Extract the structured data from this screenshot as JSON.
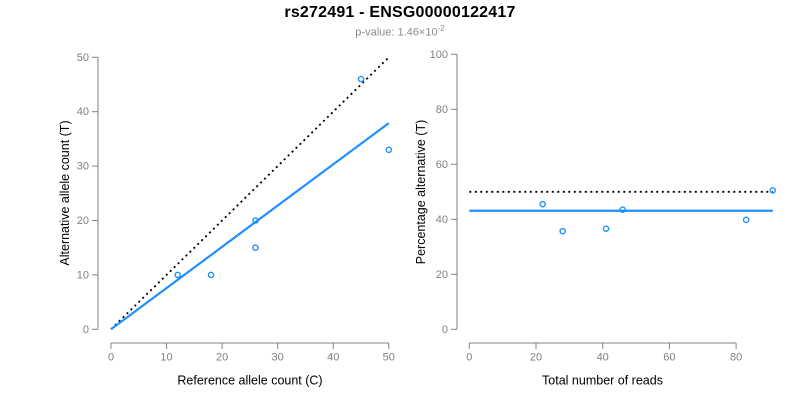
{
  "header": {
    "title": "rs272491 - ENSG00000122417",
    "subtitle_prefix": "p-value: 1.46×10",
    "subtitle_exponent": "-2"
  },
  "colors": {
    "accent_blue": "#1E90FF",
    "axis_gray": "#808080",
    "subtitle_gray": "#8C8C8C",
    "line_black": "#000000",
    "background": "#FFFFFF"
  },
  "chart_data": [
    {
      "name": "allele-count-scatter",
      "type": "scatter",
      "xlabel": "Reference allele count (C)",
      "ylabel": "Alternative allele count (T)",
      "xlim": [
        0,
        50
      ],
      "ylim": [
        0,
        50
      ],
      "xticks": [
        0,
        10,
        20,
        30,
        40,
        50
      ],
      "yticks": [
        0,
        10,
        20,
        30,
        40,
        50
      ],
      "grid": false,
      "legend": null,
      "point_color": "#1E90FF",
      "points": [
        {
          "x": 12,
          "y": 10
        },
        {
          "x": 18,
          "y": 10
        },
        {
          "x": 26,
          "y": 15
        },
        {
          "x": 26,
          "y": 20
        },
        {
          "x": 45,
          "y": 46
        },
        {
          "x": 50,
          "y": 33
        }
      ],
      "lines": [
        {
          "name": "identity-line",
          "style": "dotted",
          "color": "#000000",
          "x": [
            0,
            50
          ],
          "y": [
            0,
            50
          ]
        },
        {
          "name": "regression-line",
          "style": "solid",
          "color": "#1E90FF",
          "x": [
            0,
            50
          ],
          "y": [
            0,
            37.9
          ]
        }
      ]
    },
    {
      "name": "percentage-scatter",
      "type": "scatter",
      "xlabel": "Total number of reads",
      "ylabel": "Percentage alternative (T)",
      "xlim": [
        0,
        95
      ],
      "ylim": [
        0,
        100
      ],
      "xticks": [
        0,
        20,
        40,
        60,
        80
      ],
      "yticks": [
        0,
        20,
        40,
        60,
        80,
        100
      ],
      "grid": false,
      "legend": null,
      "point_color": "#1E90FF",
      "points": [
        {
          "x": 22,
          "y": 45.5
        },
        {
          "x": 28,
          "y": 35.7
        },
        {
          "x": 41,
          "y": 36.6
        },
        {
          "x": 46,
          "y": 43.5
        },
        {
          "x": 83,
          "y": 39.8
        },
        {
          "x": 91,
          "y": 50.5
        }
      ],
      "lines": [
        {
          "name": "expected-50pct-line",
          "style": "dotted",
          "color": "#000000",
          "x": [
            0,
            91
          ],
          "y": [
            50,
            50
          ]
        },
        {
          "name": "mean-percentage-line",
          "style": "solid",
          "color": "#1E90FF",
          "x": [
            0,
            91
          ],
          "y": [
            43.1,
            43.1
          ]
        }
      ]
    }
  ]
}
